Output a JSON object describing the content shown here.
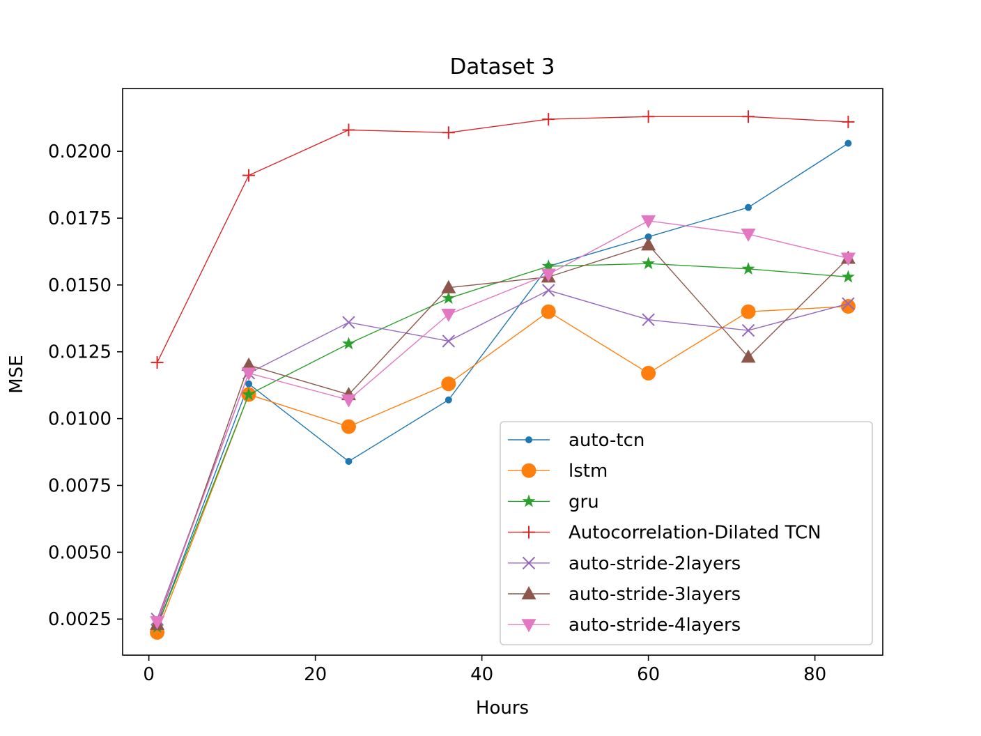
{
  "chart_data": {
    "type": "line",
    "title": "Dataset 3",
    "xlabel": "Hours",
    "ylabel": "MSE",
    "xlim": [
      -3.15,
      88.15
    ],
    "ylim": [
      0.00115,
      0.02235
    ],
    "xticks": [
      0,
      20,
      40,
      60,
      80
    ],
    "yticks": [
      0.0025,
      0.005,
      0.0075,
      0.01,
      0.0125,
      0.015,
      0.0175,
      0.02
    ],
    "ytick_labels": [
      "0.0025",
      "0.0050",
      "0.0075",
      "0.0100",
      "0.0125",
      "0.0150",
      "0.0175",
      "0.0200"
    ],
    "grid": false,
    "legend_position": "lower right",
    "x": [
      1,
      12,
      24,
      36,
      48,
      60,
      72,
      84
    ],
    "series": [
      {
        "name": "auto-tcn",
        "color": "#1f77b4",
        "marker": "point",
        "values": [
          0.0022,
          0.0113,
          0.0084,
          0.0107,
          0.0157,
          0.0168,
          0.0179,
          0.0203
        ]
      },
      {
        "name": "lstm",
        "color": "#ff7f0e",
        "marker": "circle",
        "values": [
          0.002,
          0.0109,
          0.0097,
          0.0113,
          0.014,
          0.0117,
          0.014,
          0.0142
        ]
      },
      {
        "name": "gru",
        "color": "#2ca02c",
        "marker": "star",
        "values": [
          0.0022,
          0.0109,
          0.0128,
          0.0145,
          0.0157,
          0.0158,
          0.0156,
          0.0153
        ]
      },
      {
        "name": "Autocorrelation-Dilated TCN",
        "color": "#d62728",
        "marker": "plus",
        "values": [
          0.0121,
          0.0191,
          0.0208,
          0.0207,
          0.0212,
          0.0213,
          0.0213,
          0.0211
        ]
      },
      {
        "name": "auto-stride-2layers",
        "color": "#9467bd",
        "marker": "x",
        "values": [
          0.0025,
          0.0117,
          0.0136,
          0.0129,
          0.0148,
          0.0137,
          0.0133,
          0.0143
        ]
      },
      {
        "name": "auto-stride-3layers",
        "color": "#8c564b",
        "marker": "triangle-up",
        "values": [
          0.0023,
          0.012,
          0.0109,
          0.0149,
          0.0153,
          0.0165,
          0.0123,
          0.016
        ]
      },
      {
        "name": "auto-stride-4layers",
        "color": "#e377c2",
        "marker": "triangle-down",
        "values": [
          0.0024,
          0.0117,
          0.0107,
          0.0139,
          0.0154,
          0.0174,
          0.0169,
          0.016
        ]
      }
    ]
  }
}
